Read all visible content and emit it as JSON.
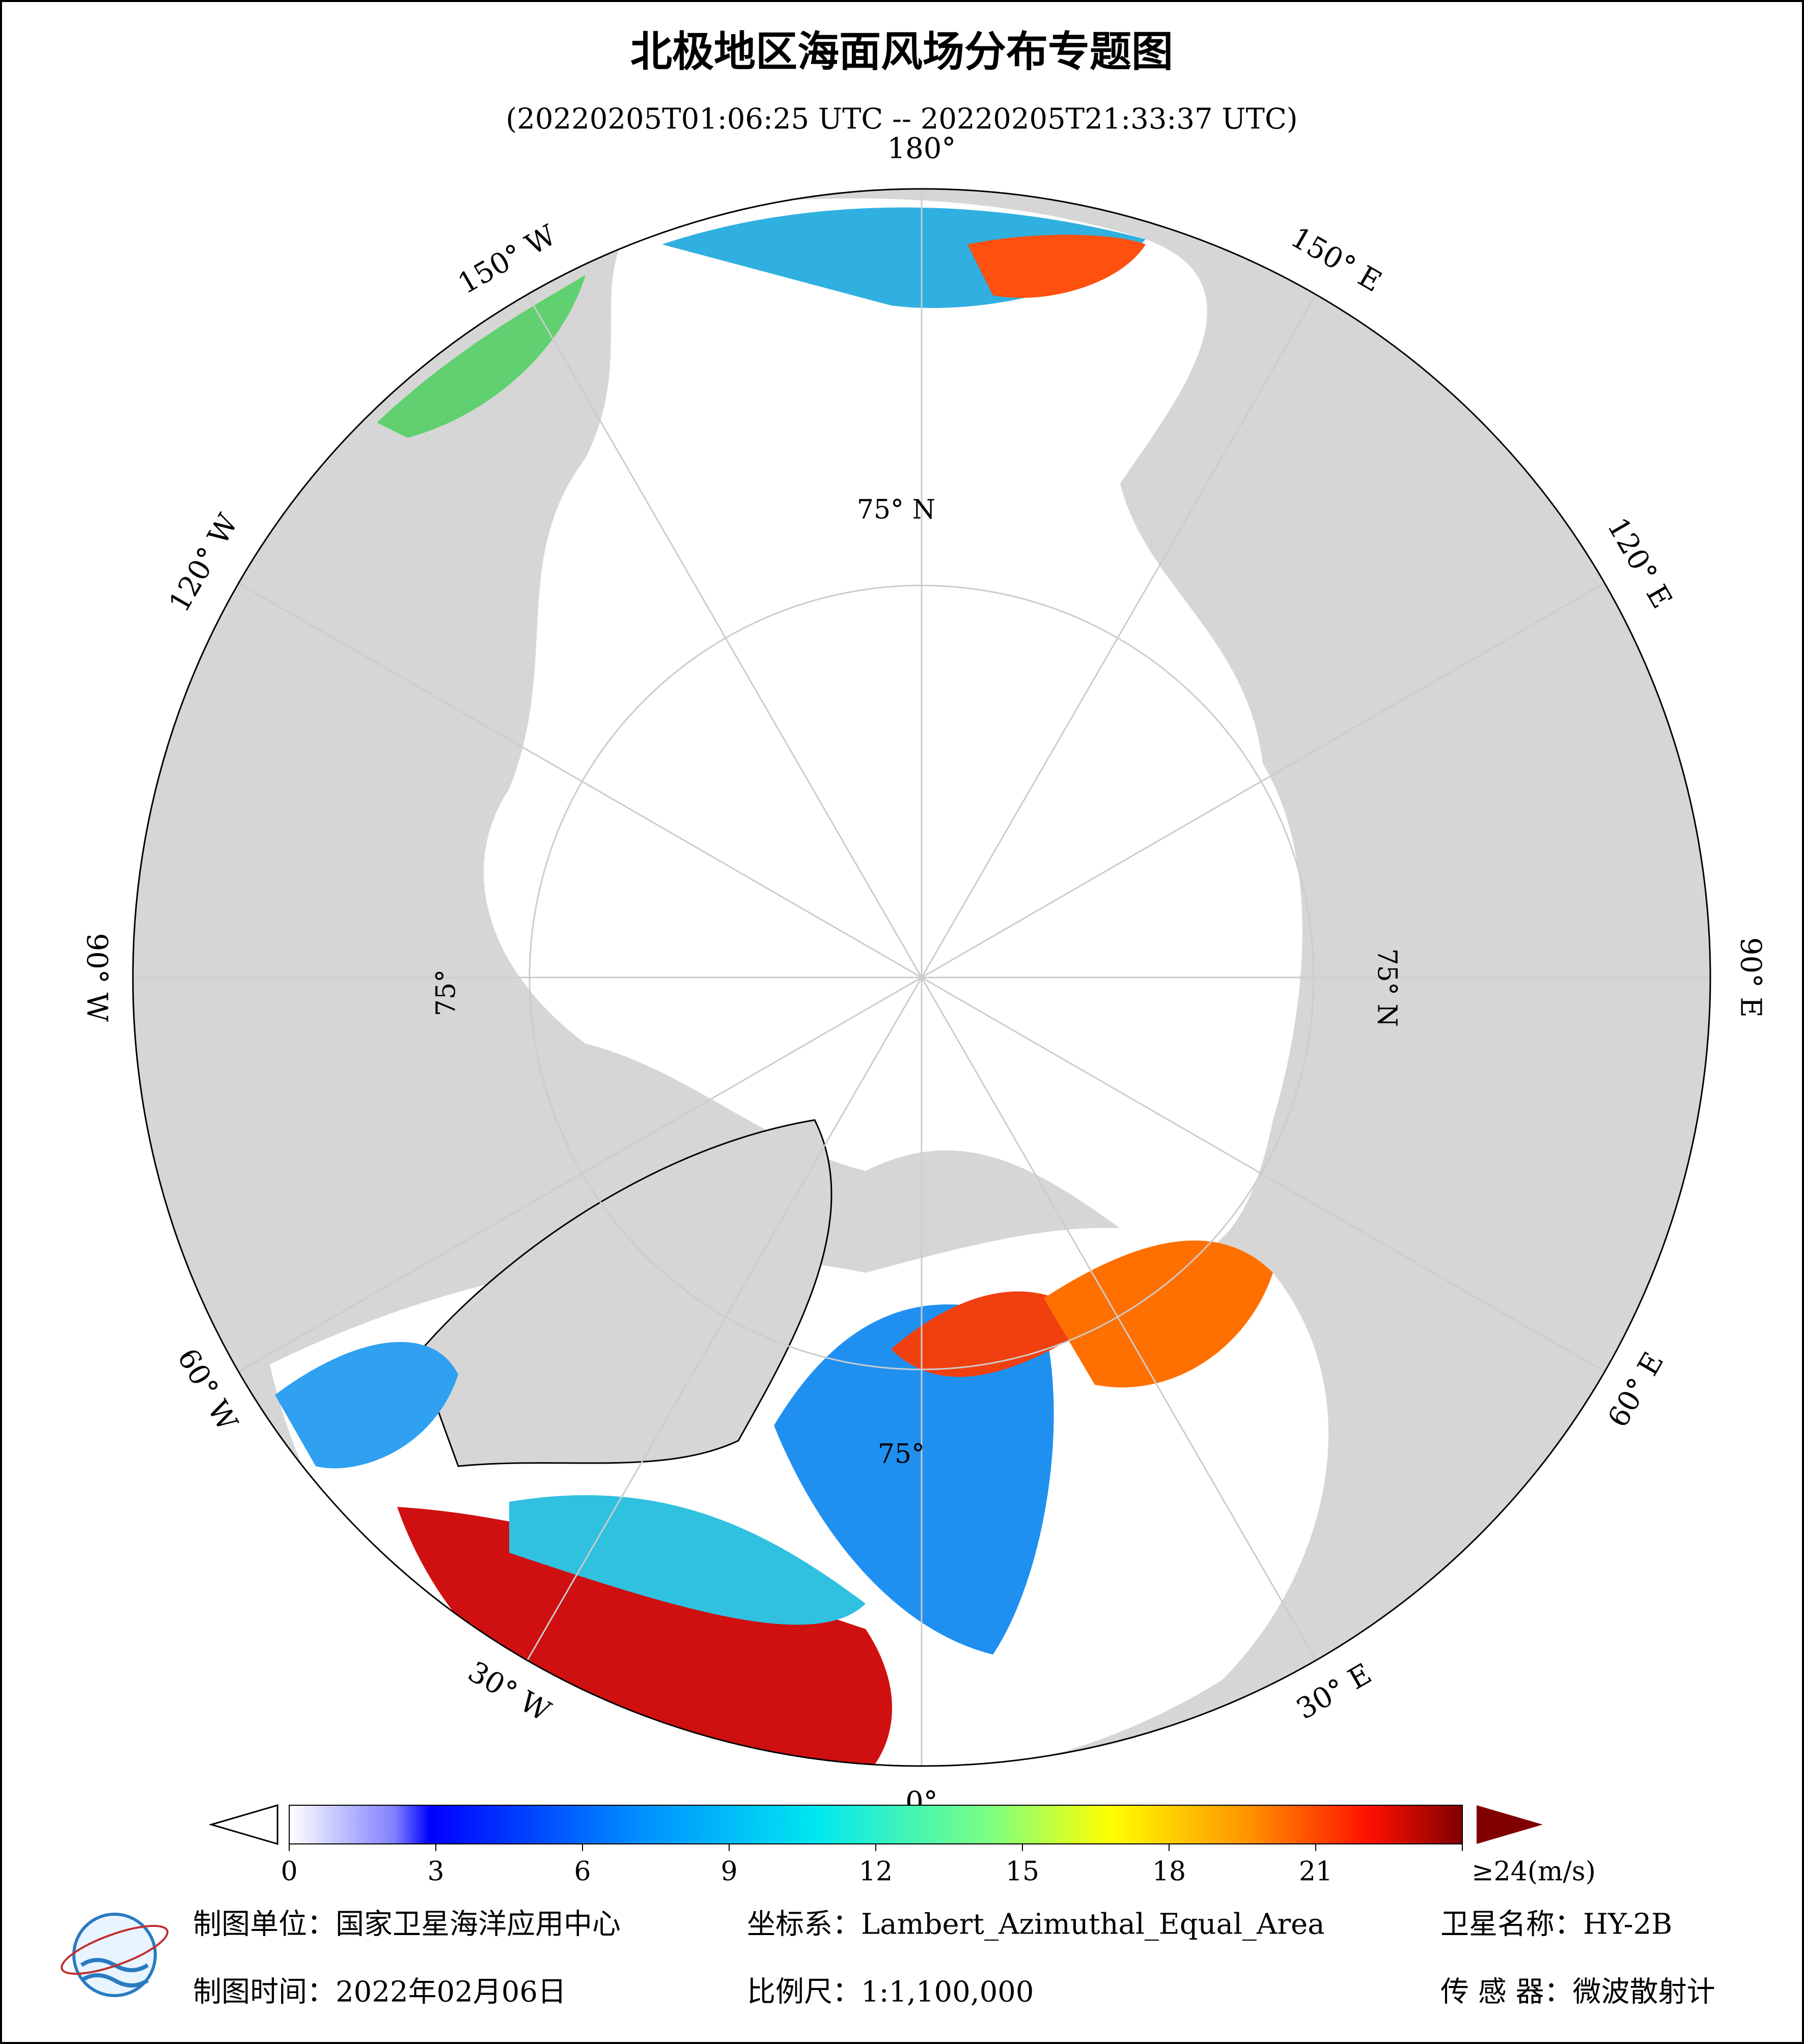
{
  "header": {
    "title": "北极地区海面风场分布专题图",
    "subtitle": "(20220205T01:06:25 UTC -- 20220205T21:33:37 UTC)"
  },
  "map": {
    "longitude_labels": [
      "180°",
      "150° E",
      "120° E",
      "90° E",
      "60° E",
      "30° E",
      "0°",
      "30° W",
      "60° W",
      "90° W",
      "120° W",
      "150° W"
    ],
    "latitude_labels": [
      "75° N",
      "75° N",
      "75°",
      "75°"
    ]
  },
  "colorbar": {
    "ticks": [
      0,
      3,
      6,
      9,
      12,
      15,
      18,
      21,
      {
        "value": 24,
        "label": "≥24(m/s)"
      }
    ]
  },
  "footer": {
    "rows": [
      [
        "制图单位：国家卫星海洋应用中心",
        "坐标系：Lambert_Azimuthal_Equal_Area",
        "卫星名称：HY-2B"
      ],
      [
        "制图时间：2022年02月06日",
        "比例尺：1:1,100,000",
        "传 感 器：微波散射计"
      ]
    ]
  }
}
